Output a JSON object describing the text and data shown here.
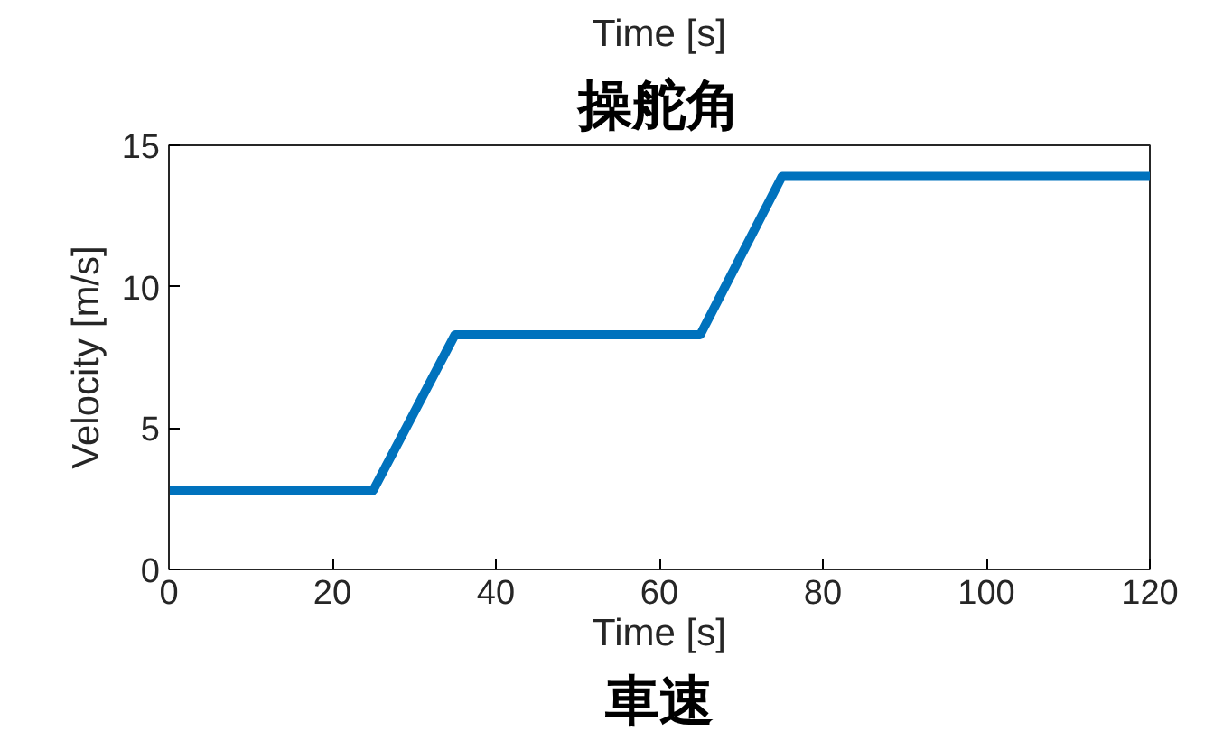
{
  "chart_data": {
    "type": "line",
    "title": "操舵角",
    "xlabel": "Time [s]",
    "ylabel": "Velocity [m/s]",
    "annotations": [
      "Time [s]",
      "車速"
    ],
    "x": [
      0,
      25,
      35,
      65,
      75,
      120
    ],
    "series": [
      {
        "color": "#0072bd",
        "values": [
          2.8,
          2.8,
          8.3,
          8.3,
          13.9,
          13.9
        ]
      }
    ],
    "xlim": [
      0,
      120
    ],
    "ylim": [
      0,
      15
    ],
    "xticks": [
      0,
      20,
      40,
      60,
      80,
      100,
      120
    ],
    "yticks": [
      0,
      5,
      10,
      15
    ],
    "grid": false,
    "line_style": "solid"
  }
}
